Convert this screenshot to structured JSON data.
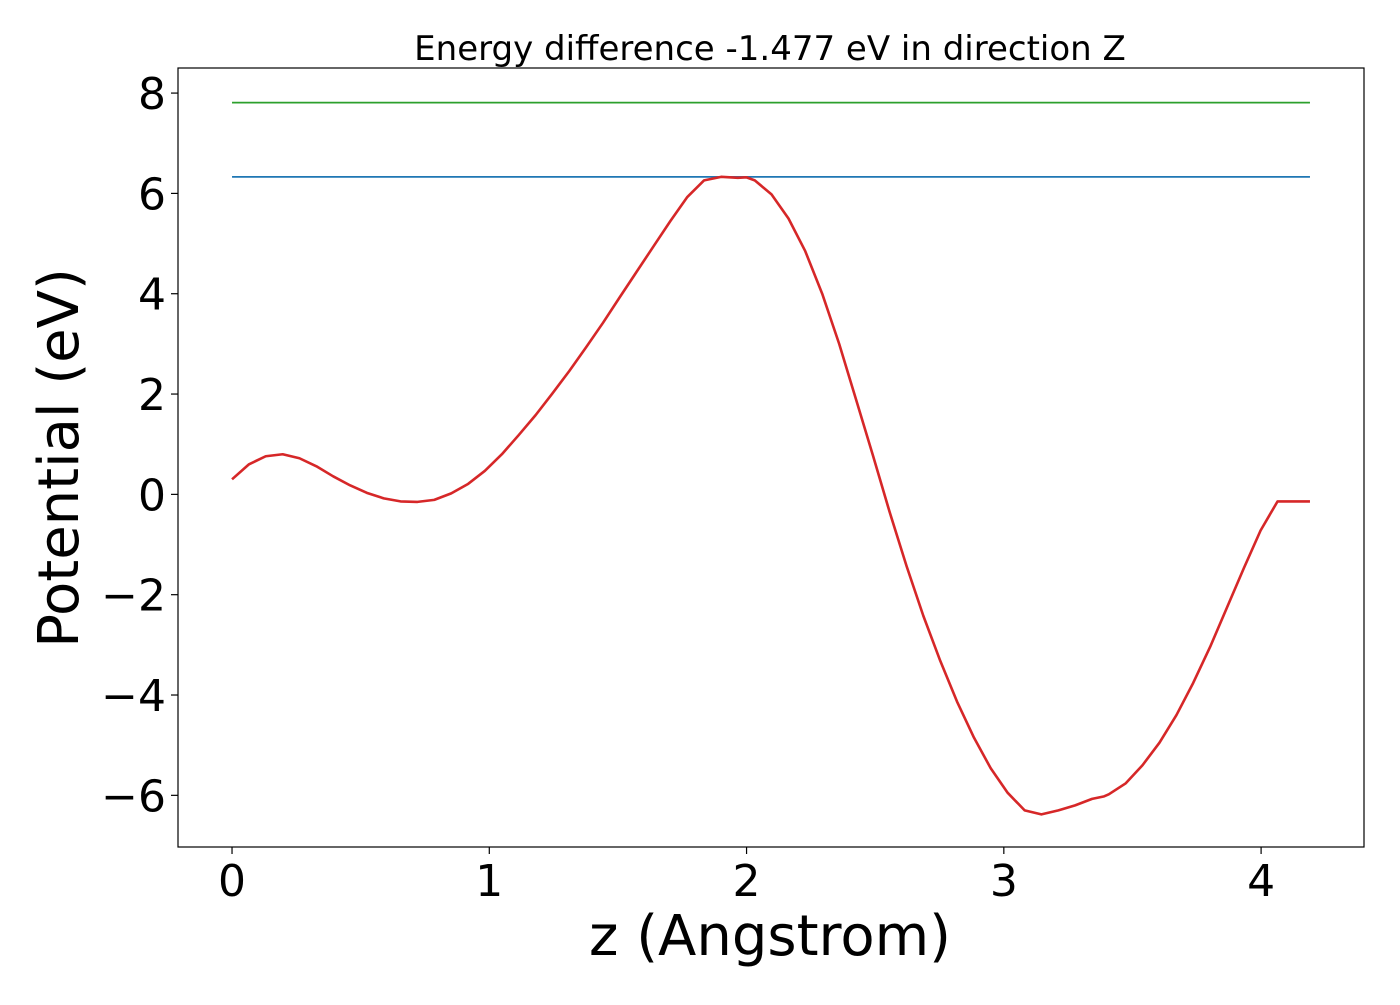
{
  "chart_data": {
    "type": "line",
    "title": "Energy difference -1.477 eV in direction Z",
    "xlabel": "z (Angstrom)",
    "ylabel": "Potential (eV)",
    "xlim": [
      -0.21,
      4.4
    ],
    "ylim": [
      -7.03,
      8.5
    ],
    "xticks": [
      {
        "value": 0,
        "label": "0"
      },
      {
        "value": 1,
        "label": "1"
      },
      {
        "value": 2,
        "label": "2"
      },
      {
        "value": 3,
        "label": "3"
      },
      {
        "value": 4,
        "label": "4"
      }
    ],
    "yticks": [
      {
        "value": -6,
        "label": "−6"
      },
      {
        "value": -4,
        "label": "−4"
      },
      {
        "value": -2,
        "label": "−2"
      },
      {
        "value": 0,
        "label": "0"
      },
      {
        "value": 2,
        "label": "2"
      },
      {
        "value": 4,
        "label": "4"
      },
      {
        "value": 6,
        "label": "6"
      },
      {
        "value": 8,
        "label": "8"
      }
    ],
    "grid": false,
    "legend": false,
    "series": [
      {
        "color": "#d62728",
        "x": [
          0.0,
          0.066,
          0.131,
          0.197,
          0.262,
          0.328,
          0.393,
          0.459,
          0.524,
          0.59,
          0.655,
          0.721,
          0.786,
          0.852,
          0.918,
          0.983,
          1.049,
          1.114,
          1.18,
          1.245,
          1.311,
          1.376,
          1.442,
          1.507,
          1.573,
          1.639,
          1.704,
          1.77,
          1.835,
          1.901,
          1.966,
          2.0,
          2.032,
          2.097,
          2.163,
          2.228,
          2.294,
          2.36,
          2.425,
          2.491,
          2.556,
          2.622,
          2.687,
          2.753,
          2.818,
          2.884,
          2.949,
          3.015,
          3.081,
          3.146,
          3.212,
          3.277,
          3.343,
          3.39,
          3.408,
          3.474,
          3.539,
          3.605,
          3.671,
          3.736,
          3.802,
          3.867,
          3.933,
          3.998,
          4.064,
          4.129,
          4.19
        ],
        "y": [
          0.3,
          0.6,
          0.76,
          0.8,
          0.72,
          0.56,
          0.36,
          0.18,
          0.03,
          -0.08,
          -0.14,
          -0.15,
          -0.11,
          0.02,
          0.21,
          0.47,
          0.8,
          1.18,
          1.58,
          2.01,
          2.46,
          2.93,
          3.42,
          3.93,
          4.44,
          4.95,
          5.45,
          5.93,
          6.26,
          6.33,
          6.31,
          6.32,
          6.26,
          5.98,
          5.5,
          4.85,
          4.0,
          3.0,
          1.9,
          0.78,
          -0.35,
          -1.43,
          -2.42,
          -3.32,
          -4.13,
          -4.85,
          -5.46,
          -5.95,
          -6.3,
          -6.38,
          -6.3,
          -6.2,
          -6.07,
          -6.02,
          -5.98,
          -5.76,
          -5.4,
          -4.95,
          -4.4,
          -3.76,
          -3.04,
          -2.26,
          -1.47,
          -0.72,
          -0.14,
          -0.14,
          -0.14
        ]
      },
      {
        "color": "#1f77b4",
        "x": [
          0.0,
          4.19
        ],
        "y": [
          6.33,
          6.33
        ]
      },
      {
        "color": "#2ca02c",
        "x": [
          0.0,
          4.19
        ],
        "y": [
          7.81,
          7.81
        ]
      }
    ]
  }
}
